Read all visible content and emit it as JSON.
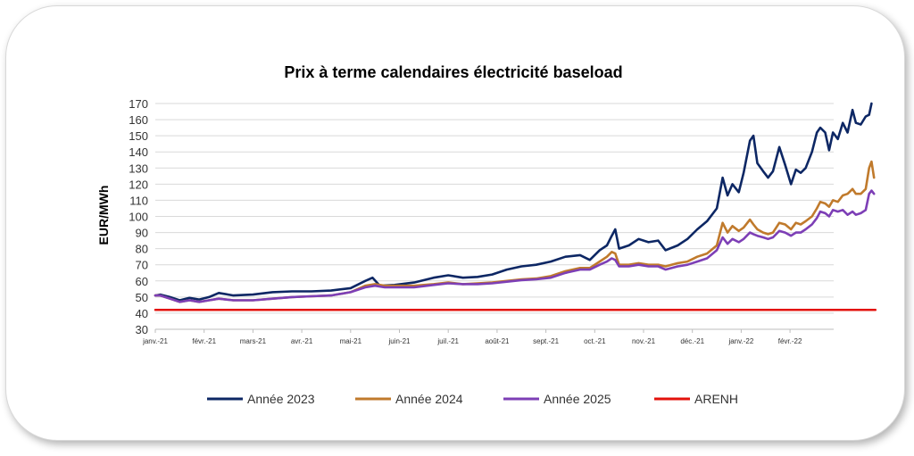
{
  "chart_data": {
    "type": "line",
    "title": "Prix à terme calendaires électricité baseload",
    "ylabel": "EUR/MWh",
    "xlabel": "",
    "ylim": [
      30,
      170
    ],
    "yticks": [
      30,
      40,
      50,
      60,
      70,
      80,
      90,
      100,
      110,
      120,
      130,
      140,
      150,
      160,
      170
    ],
    "xticks": [
      "janv.-21",
      "févr.-21",
      "mars-21",
      "avr.-21",
      "mai-21",
      "juin-21",
      "juil.-21",
      "août-21",
      "sept.-21",
      "oct.-21",
      "nov.-21",
      "déc.-21",
      "janv.-22",
      "févr.-22"
    ],
    "grid": true,
    "legend": "bottom",
    "series": [
      {
        "name": "Année 2023",
        "color": "#0d2764",
        "points": [
          [
            0,
            51
          ],
          [
            0.1,
            51.5
          ],
          [
            0.3,
            50
          ],
          [
            0.5,
            48
          ],
          [
            0.7,
            49.5
          ],
          [
            0.9,
            48.5
          ],
          [
            1.1,
            50
          ],
          [
            1.3,
            52.5
          ],
          [
            1.6,
            51
          ],
          [
            2.0,
            51.5
          ],
          [
            2.4,
            53
          ],
          [
            2.8,
            53.5
          ],
          [
            3.2,
            53.5
          ],
          [
            3.6,
            54
          ],
          [
            4.0,
            55.5
          ],
          [
            4.3,
            60
          ],
          [
            4.45,
            62
          ],
          [
            4.6,
            57
          ],
          [
            4.9,
            57.5
          ],
          [
            5.3,
            59
          ],
          [
            5.7,
            62
          ],
          [
            6.0,
            63.5
          ],
          [
            6.3,
            62
          ],
          [
            6.6,
            62.5
          ],
          [
            6.9,
            64
          ],
          [
            7.2,
            67
          ],
          [
            7.5,
            69
          ],
          [
            7.8,
            70
          ],
          [
            8.1,
            72
          ],
          [
            8.4,
            75
          ],
          [
            8.7,
            76
          ],
          [
            8.9,
            73
          ],
          [
            9.1,
            79
          ],
          [
            9.25,
            82
          ],
          [
            9.35,
            88
          ],
          [
            9.42,
            92
          ],
          [
            9.5,
            80
          ],
          [
            9.7,
            82
          ],
          [
            9.9,
            86
          ],
          [
            10.1,
            84
          ],
          [
            10.3,
            85
          ],
          [
            10.45,
            79
          ],
          [
            10.7,
            82
          ],
          [
            10.9,
            86
          ],
          [
            11.1,
            92
          ],
          [
            11.3,
            97
          ],
          [
            11.5,
            105
          ],
          [
            11.62,
            124
          ],
          [
            11.72,
            113
          ],
          [
            11.82,
            120
          ],
          [
            11.95,
            115
          ],
          [
            12.05,
            127
          ],
          [
            12.18,
            147
          ],
          [
            12.25,
            150
          ],
          [
            12.33,
            133
          ],
          [
            12.45,
            128
          ],
          [
            12.55,
            124
          ],
          [
            12.65,
            128
          ],
          [
            12.78,
            143
          ],
          [
            12.9,
            132
          ],
          [
            13.02,
            120
          ],
          [
            13.12,
            129
          ],
          [
            13.22,
            127
          ],
          [
            13.32,
            130
          ],
          [
            13.45,
            140
          ],
          [
            13.55,
            152
          ],
          [
            13.62,
            155
          ],
          [
            13.72,
            152
          ],
          [
            13.8,
            141
          ],
          [
            13.88,
            152
          ],
          [
            13.98,
            148
          ],
          [
            14.08,
            158
          ],
          [
            14.18,
            152
          ],
          [
            14.28,
            166
          ],
          [
            14.35,
            158
          ],
          [
            14.45,
            157
          ],
          [
            14.55,
            162
          ],
          [
            14.62,
            163
          ],
          [
            14.67,
            170
          ]
        ]
      },
      {
        "name": "Année 2024",
        "color": "#c07a2c",
        "points": [
          [
            0,
            51
          ],
          [
            0.1,
            51
          ],
          [
            0.3,
            49
          ],
          [
            0.5,
            47
          ],
          [
            0.7,
            48
          ],
          [
            0.9,
            47
          ],
          [
            1.1,
            48
          ],
          [
            1.3,
            49
          ],
          [
            1.6,
            48
          ],
          [
            2.0,
            48
          ],
          [
            2.4,
            49
          ],
          [
            2.8,
            50
          ],
          [
            3.2,
            50.5
          ],
          [
            3.6,
            51
          ],
          [
            4.0,
            53
          ],
          [
            4.3,
            57
          ],
          [
            4.5,
            58
          ],
          [
            4.7,
            57
          ],
          [
            5.0,
            57
          ],
          [
            5.3,
            57
          ],
          [
            5.7,
            58
          ],
          [
            6.0,
            59
          ],
          [
            6.3,
            58
          ],
          [
            6.6,
            58.5
          ],
          [
            6.9,
            59
          ],
          [
            7.2,
            60
          ],
          [
            7.5,
            61
          ],
          [
            7.8,
            61.5
          ],
          [
            8.1,
            63
          ],
          [
            8.4,
            66
          ],
          [
            8.7,
            68
          ],
          [
            8.9,
            68
          ],
          [
            9.1,
            72
          ],
          [
            9.25,
            75
          ],
          [
            9.35,
            78
          ],
          [
            9.42,
            77
          ],
          [
            9.5,
            70
          ],
          [
            9.7,
            70
          ],
          [
            9.9,
            71
          ],
          [
            10.1,
            70
          ],
          [
            10.3,
            70
          ],
          [
            10.45,
            69
          ],
          [
            10.7,
            71
          ],
          [
            10.9,
            72
          ],
          [
            11.1,
            75
          ],
          [
            11.3,
            77
          ],
          [
            11.5,
            82
          ],
          [
            11.62,
            96
          ],
          [
            11.72,
            90
          ],
          [
            11.82,
            94
          ],
          [
            11.95,
            91
          ],
          [
            12.05,
            93
          ],
          [
            12.18,
            98
          ],
          [
            12.25,
            95
          ],
          [
            12.33,
            92
          ],
          [
            12.45,
            90
          ],
          [
            12.55,
            89
          ],
          [
            12.65,
            90
          ],
          [
            12.78,
            96
          ],
          [
            12.9,
            95
          ],
          [
            13.02,
            92
          ],
          [
            13.12,
            96
          ],
          [
            13.22,
            95
          ],
          [
            13.32,
            97
          ],
          [
            13.45,
            100
          ],
          [
            13.55,
            105
          ],
          [
            13.62,
            109
          ],
          [
            13.72,
            108
          ],
          [
            13.8,
            106
          ],
          [
            13.88,
            110
          ],
          [
            13.98,
            109
          ],
          [
            14.08,
            113
          ],
          [
            14.18,
            114
          ],
          [
            14.28,
            117
          ],
          [
            14.35,
            114
          ],
          [
            14.45,
            114
          ],
          [
            14.55,
            117
          ],
          [
            14.62,
            130
          ],
          [
            14.67,
            134
          ],
          [
            14.72,
            124
          ]
        ]
      },
      {
        "name": "Année 2025",
        "color": "#7d3fb6",
        "points": [
          [
            0,
            51
          ],
          [
            0.1,
            51
          ],
          [
            0.3,
            49
          ],
          [
            0.5,
            47
          ],
          [
            0.7,
            48
          ],
          [
            0.9,
            47
          ],
          [
            1.1,
            48
          ],
          [
            1.3,
            49
          ],
          [
            1.6,
            48
          ],
          [
            2.0,
            48
          ],
          [
            2.4,
            49
          ],
          [
            2.8,
            50
          ],
          [
            3.2,
            50.5
          ],
          [
            3.6,
            51
          ],
          [
            4.0,
            53
          ],
          [
            4.3,
            56
          ],
          [
            4.5,
            57
          ],
          [
            4.7,
            56
          ],
          [
            5.0,
            56
          ],
          [
            5.3,
            56
          ],
          [
            5.7,
            57.5
          ],
          [
            6.0,
            58.5
          ],
          [
            6.3,
            58
          ],
          [
            6.6,
            58
          ],
          [
            6.9,
            58.5
          ],
          [
            7.2,
            59.5
          ],
          [
            7.5,
            60.5
          ],
          [
            7.8,
            61
          ],
          [
            8.1,
            62
          ],
          [
            8.4,
            65
          ],
          [
            8.7,
            67
          ],
          [
            8.9,
            67
          ],
          [
            9.1,
            70
          ],
          [
            9.25,
            72
          ],
          [
            9.35,
            74
          ],
          [
            9.42,
            73
          ],
          [
            9.5,
            69
          ],
          [
            9.7,
            69
          ],
          [
            9.9,
            70
          ],
          [
            10.1,
            69
          ],
          [
            10.3,
            69
          ],
          [
            10.45,
            67
          ],
          [
            10.7,
            69
          ],
          [
            10.9,
            70
          ],
          [
            11.1,
            72
          ],
          [
            11.3,
            74
          ],
          [
            11.5,
            79
          ],
          [
            11.62,
            87
          ],
          [
            11.72,
            83
          ],
          [
            11.82,
            86
          ],
          [
            11.95,
            84
          ],
          [
            12.05,
            86
          ],
          [
            12.18,
            90
          ],
          [
            12.25,
            89
          ],
          [
            12.33,
            88
          ],
          [
            12.45,
            87
          ],
          [
            12.55,
            86
          ],
          [
            12.65,
            87
          ],
          [
            12.78,
            91
          ],
          [
            12.9,
            90
          ],
          [
            13.02,
            88
          ],
          [
            13.12,
            90
          ],
          [
            13.22,
            90
          ],
          [
            13.32,
            92
          ],
          [
            13.45,
            95
          ],
          [
            13.55,
            99
          ],
          [
            13.62,
            103
          ],
          [
            13.72,
            102
          ],
          [
            13.8,
            100
          ],
          [
            13.88,
            104
          ],
          [
            13.98,
            103
          ],
          [
            14.08,
            104
          ],
          [
            14.18,
            101
          ],
          [
            14.28,
            103
          ],
          [
            14.35,
            101
          ],
          [
            14.45,
            102
          ],
          [
            14.55,
            104
          ],
          [
            14.62,
            114
          ],
          [
            14.67,
            116
          ],
          [
            14.72,
            114
          ]
        ]
      },
      {
        "name": "ARENH",
        "color": "#e3120b",
        "points": [
          [
            0,
            42
          ],
          [
            14.75,
            42
          ]
        ]
      }
    ]
  }
}
